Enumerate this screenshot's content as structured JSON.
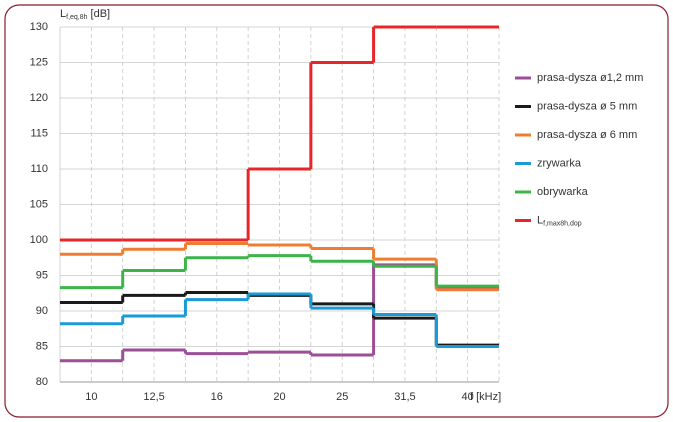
{
  "chart_data": {
    "type": "step",
    "y_label": {
      "main": "L",
      "sub": "f,eq,8h",
      "unit": "[dB]"
    },
    "x_label": "f [kHz]",
    "categories": [
      "10",
      "12,5",
      "16",
      "20",
      "25",
      "31,5",
      "40"
    ],
    "ylim": [
      80,
      130
    ],
    "yticks": [
      80,
      85,
      90,
      95,
      100,
      105,
      110,
      115,
      120,
      125,
      130
    ],
    "grid": true,
    "series": [
      {
        "name": "prasa-dysza ø1,2 mm",
        "color": "#9b4f96",
        "values": [
          83,
          84.5,
          84,
          84.2,
          83.8,
          96.5,
          93.3
        ]
      },
      {
        "name": "prasa-dysza ø 5 mm",
        "color": "#1a1a1a",
        "values": [
          91.2,
          92.2,
          92.6,
          92.2,
          91,
          89,
          85.2
        ]
      },
      {
        "name": "prasa-dysza ø 6 mm",
        "color": "#ef7d31",
        "values": [
          98,
          98.7,
          99.5,
          99.3,
          98.8,
          97.3,
          93
        ]
      },
      {
        "name": "zrywarka",
        "color": "#1a9ad7",
        "values": [
          88.2,
          89.3,
          91.6,
          92.4,
          90.4,
          89.5,
          85
        ]
      },
      {
        "name": "obrywarka",
        "color": "#3cb44a",
        "values": [
          93.3,
          95.7,
          97.5,
          97.8,
          97,
          96.3,
          93.5
        ]
      },
      {
        "name": "L",
        "name_sub": "f,max8h,dop",
        "color": "#e8262a",
        "values": [
          100,
          100,
          100,
          110,
          125,
          130,
          130
        ]
      }
    ]
  }
}
